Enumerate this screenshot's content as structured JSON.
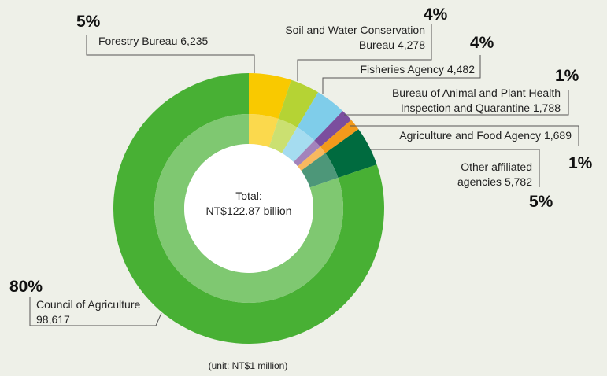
{
  "chart_data": {
    "type": "donut",
    "categories": [
      "Forestry Bureau",
      "Soil and Water Conservation Bureau",
      "Fisheries Agency",
      "Bureau of Animal and Plant Health Inspection and Quarantine",
      "Agriculture and Food Agency",
      "Other affiliated agencies",
      "Council of Agriculture"
    ],
    "values": [
      6235,
      4278,
      4482,
      1788,
      1689,
      5782,
      98617
    ],
    "value_labels": [
      "6,235",
      "4,278",
      "4,482",
      "1,788",
      "1,689",
      "5,782",
      "98,617"
    ],
    "percent_labels": [
      "5%",
      "4%",
      "4%",
      "1%",
      "1%",
      "5%",
      "80%"
    ],
    "colors": [
      "#f9c900",
      "#b5d334",
      "#7fcdea",
      "#7b4e9e",
      "#f39a1b",
      "#006b3f",
      "#48b034"
    ],
    "center_label": [
      "Total:",
      "NT$122.87 billion"
    ],
    "note": "(unit: NT$1 million)"
  }
}
